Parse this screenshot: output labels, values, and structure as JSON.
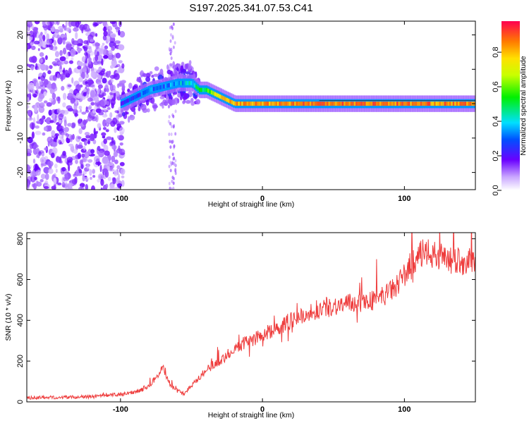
{
  "title": "S197.2025.341.07.53.C41",
  "chart_data": [
    {
      "type": "heatmap",
      "title": "S197.2025.341.07.53.C41",
      "xlabel": "Height of straight line (km)",
      "ylabel": "Frequency (Hz)",
      "xlim": [
        -166,
        150
      ],
      "ylim": [
        -25,
        24
      ],
      "x_ticks": [
        -100,
        0,
        100
      ],
      "y_ticks": [
        20,
        10,
        0,
        -10,
        -20
      ],
      "colorbar": {
        "label": "Normalized spectral amplitude",
        "range": [
          0,
          0.98
        ],
        "ticks": [
          "0.0",
          "0.2",
          "0.4",
          "0.6",
          "0.8"
        ],
        "tick_values": [
          0,
          0.2,
          0.4,
          0.6,
          0.8
        ]
      },
      "ridge": {
        "x": [
          -100,
          -90,
          -80,
          -70,
          -60,
          -50,
          -45,
          -40,
          -35,
          -30,
          -20,
          0,
          20,
          50,
          100,
          150
        ],
        "y": [
          0,
          2,
          4,
          5,
          6,
          6,
          4,
          4,
          3,
          2,
          0,
          0,
          0,
          0,
          0,
          0
        ],
        "amplitude": [
          0.25,
          0.3,
          0.35,
          0.35,
          0.4,
          0.45,
          0.5,
          0.6,
          0.7,
          0.8,
          0.85,
          0.88,
          0.9,
          0.92,
          0.9,
          0.88
        ]
      }
    },
    {
      "type": "line",
      "xlabel": "Height of straight line (km)",
      "ylabel": "SNR (10 * v/v)",
      "xlim": [
        -166,
        150
      ],
      "ylim": [
        0,
        830
      ],
      "x_ticks": [
        -100,
        0,
        100
      ],
      "y_ticks": [
        0,
        200,
        400,
        600,
        800
      ],
      "color": "#ee3b3b",
      "series": [
        {
          "name": "SNR",
          "x": [
            -166,
            -120,
            -95,
            -85,
            -78,
            -74,
            -70,
            -67,
            -62,
            -55,
            -50,
            -45,
            -40,
            -35,
            -30,
            -25,
            -20,
            -15,
            -10,
            -5,
            0,
            10,
            20,
            30,
            40,
            50,
            60,
            70,
            80,
            90,
            100,
            105,
            110,
            115,
            120,
            130,
            140,
            150
          ],
          "y": [
            20,
            25,
            40,
            60,
            90,
            130,
            170,
            110,
            60,
            40,
            80,
            120,
            150,
            180,
            200,
            230,
            260,
            280,
            300,
            310,
            330,
            360,
            400,
            430,
            450,
            470,
            480,
            490,
            500,
            540,
            620,
            680,
            720,
            730,
            720,
            700,
            690,
            670
          ]
        }
      ]
    }
  ]
}
